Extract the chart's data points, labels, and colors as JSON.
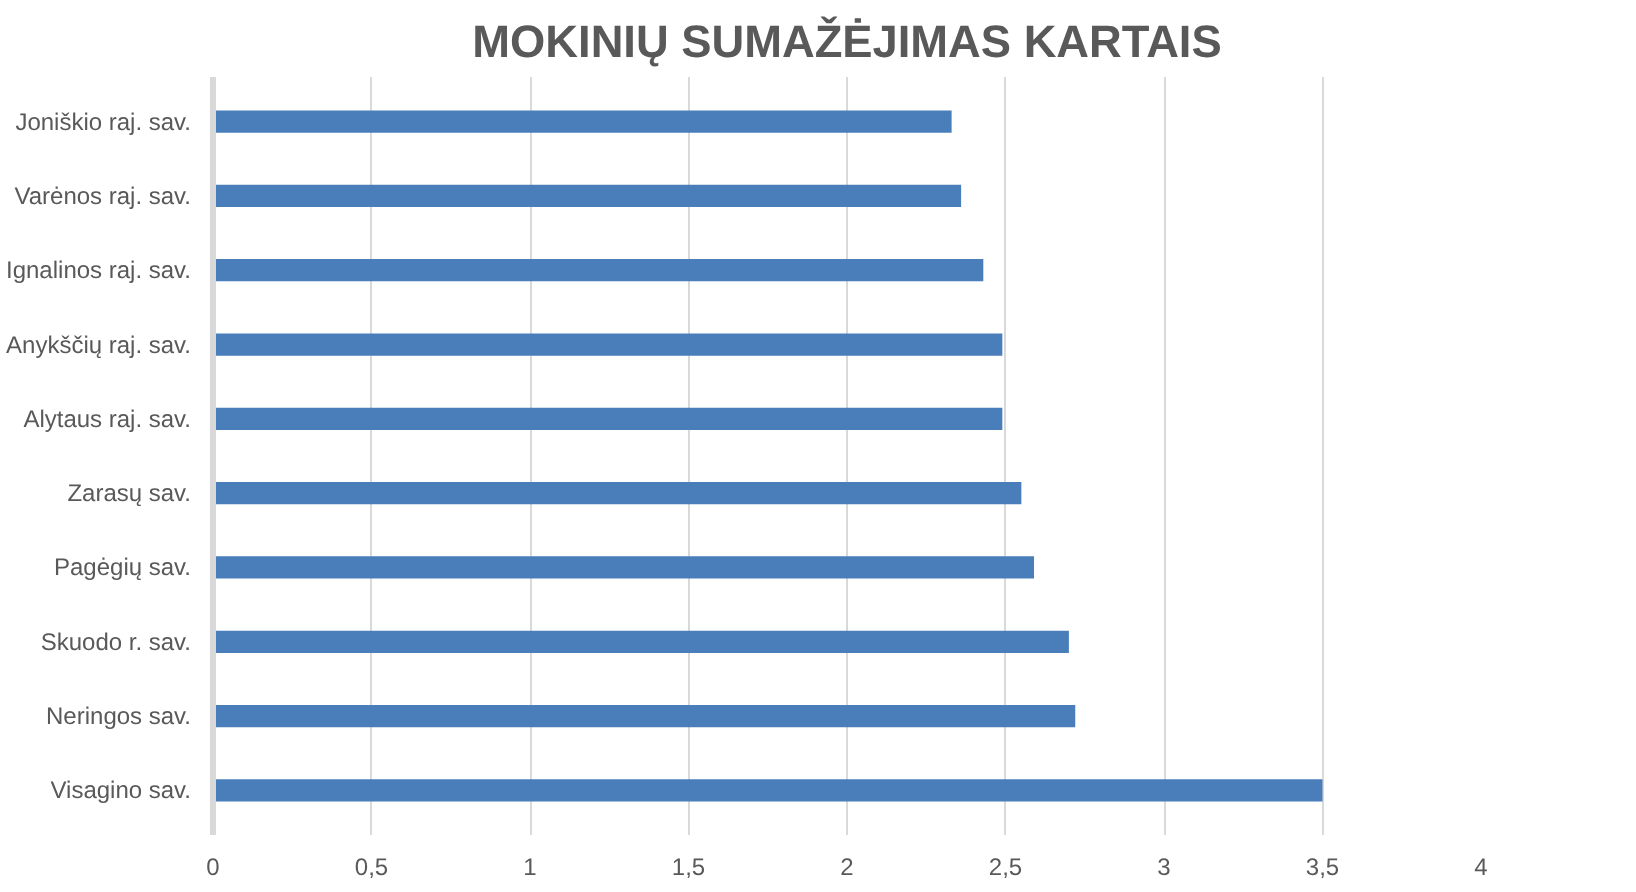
{
  "chart_data": {
    "type": "bar",
    "orientation": "horizontal",
    "title": "MOKINIŲ SUMAŽĖJIMAS KARTAIS",
    "categories": [
      "Joniškio raj. sav.",
      "Varėnos raj. sav.",
      "Ignalinos raj. sav.",
      "Anykščių raj. sav.",
      "Alytaus raj. sav.",
      "Zarasų sav.",
      "Pagėgių sav.",
      "Skuodo r. sav.",
      "Neringos sav.",
      "Visagino sav."
    ],
    "values": [
      2.33,
      2.36,
      2.43,
      2.49,
      2.49,
      2.55,
      2.59,
      2.7,
      2.72,
      3.5
    ],
    "color": "#4a7ebb",
    "xlim": [
      0,
      4
    ],
    "xticks": [
      0,
      {
        "value": 0.5,
        "label": "0,5"
      },
      1,
      {
        "value": 1.5,
        "label": "1,5"
      },
      2,
      {
        "value": 2.5,
        "label": "2,5"
      },
      3,
      {
        "value": 3.5,
        "label": "3,5"
      },
      4
    ],
    "grid": "x"
  }
}
